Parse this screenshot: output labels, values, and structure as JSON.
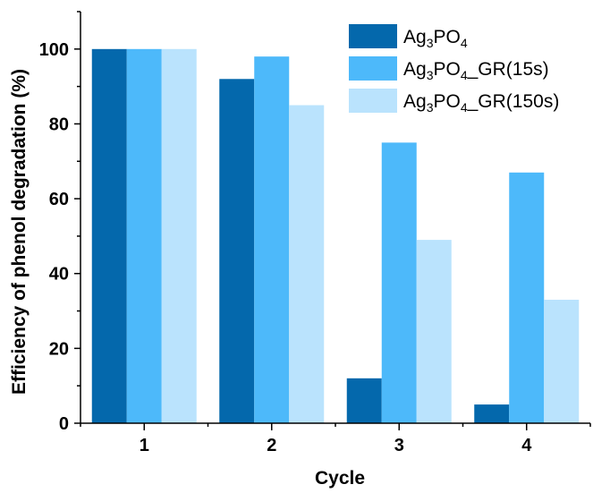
{
  "chart_data": {
    "type": "bar",
    "categories": [
      "1",
      "2",
      "3",
      "4"
    ],
    "series": [
      {
        "name": "Ag3PO4",
        "name_parts": [
          [
            "Ag",
            "normal"
          ],
          [
            "3",
            "sub"
          ],
          [
            "PO",
            "normal"
          ],
          [
            "4",
            "sub"
          ]
        ],
        "color": "#0468ac",
        "values": [
          100,
          92,
          12,
          5
        ]
      },
      {
        "name": "Ag3PO4_GR(15s)",
        "name_parts": [
          [
            "Ag",
            "normal"
          ],
          [
            "3",
            "sub"
          ],
          [
            "PO",
            "normal"
          ],
          [
            "4",
            "sub"
          ],
          [
            "_GR(15s)",
            "normal"
          ]
        ],
        "color": "#4db9fa",
        "values": [
          100,
          98,
          75,
          67
        ]
      },
      {
        "name": "Ag3PO4_GR(150s)",
        "name_parts": [
          [
            "Ag",
            "normal"
          ],
          [
            "3",
            "sub"
          ],
          [
            "PO",
            "normal"
          ],
          [
            "4",
            "sub"
          ],
          [
            "_GR(150s)",
            "normal"
          ]
        ],
        "color": "#bae3fd",
        "values": [
          100,
          85,
          49,
          33
        ]
      }
    ],
    "xlabel": "Cycle",
    "ylabel": "Efficiency of phenol degradation (%)",
    "ylim": [
      0,
      110
    ],
    "yticks": [
      0,
      20,
      40,
      60,
      80,
      100
    ],
    "grid": false,
    "legend_position": "top-right"
  }
}
